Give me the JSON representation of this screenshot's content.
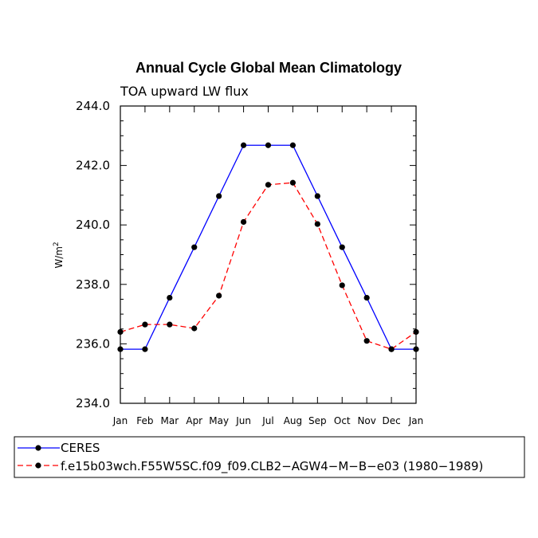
{
  "chart_data": {
    "type": "line",
    "title": "Annual Cycle Global Mean Climatology",
    "subtitle": "TOA upward LW flux",
    "xlabel": "",
    "ylabel": "W/m",
    "ylabel_superscript": "2",
    "categories": [
      "Jan",
      "Feb",
      "Mar",
      "Apr",
      "May",
      "Jun",
      "Jul",
      "Aug",
      "Sep",
      "Oct",
      "Nov",
      "Dec",
      "Jan"
    ],
    "ylim": [
      234.0,
      244.0
    ],
    "yticks": [
      "234.0",
      "236.0",
      "238.0",
      "240.0",
      "242.0",
      "244.0"
    ],
    "ytick_values": [
      234,
      236,
      238,
      240,
      242,
      244
    ],
    "series": [
      {
        "name": "CERES",
        "color": "#0000ff",
        "dash": "solid",
        "values": [
          235.82,
          235.82,
          237.55,
          239.25,
          240.97,
          242.68,
          242.68,
          242.68,
          240.97,
          239.25,
          237.55,
          235.82,
          235.82
        ]
      },
      {
        "name": "f.e15b03wch.F55W5SC.f09_f09.CLB2−AGW4−M−B−e03 (1980−1989)",
        "color": "#ff0000",
        "dash": "dashed",
        "values": [
          236.4,
          236.65,
          236.65,
          236.52,
          237.62,
          240.1,
          241.35,
          241.42,
          240.03,
          237.97,
          236.1,
          235.82,
          236.4
        ]
      }
    ],
    "legend": [
      "CERES",
      "f.e15b03wch.F55W5SC.f09_f09.CLB2−AGW4−M−B−e03 (1980−1989)"
    ],
    "legend_position": "bottom"
  }
}
